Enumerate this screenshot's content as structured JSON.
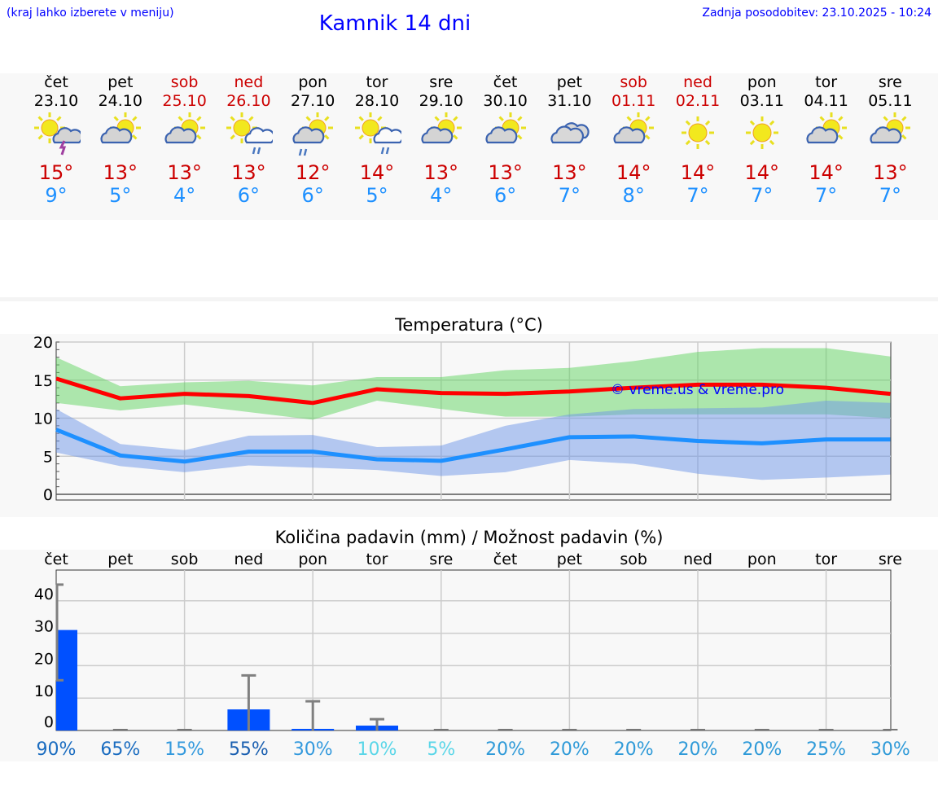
{
  "header": {
    "hint": "(kraj lahko izberete v meniju)",
    "title": "Kamnik 14 dni",
    "updated": "Zadnja posodobitev: 23.10.2025 - 10:24"
  },
  "days": [
    {
      "name": "čet",
      "date": "23.10",
      "weekend": false,
      "icon": "sun-cloud-thunder-icon",
      "max": "15°",
      "min": "9°"
    },
    {
      "name": "pet",
      "date": "24.10",
      "weekend": false,
      "icon": "partly-cloudy-icon",
      "max": "13°",
      "min": "5°"
    },
    {
      "name": "sob",
      "date": "25.10",
      "weekend": true,
      "icon": "partly-cloudy-icon",
      "max": "13°",
      "min": "4°"
    },
    {
      "name": "ned",
      "date": "26.10",
      "weekend": true,
      "icon": "sun-cloud-rain-icon",
      "max": "13°",
      "min": "6°"
    },
    {
      "name": "pon",
      "date": "27.10",
      "weekend": false,
      "icon": "partly-cloudy-rain-icon",
      "max": "12°",
      "min": "6°"
    },
    {
      "name": "tor",
      "date": "28.10",
      "weekend": false,
      "icon": "sun-cloud-rain-icon",
      "max": "14°",
      "min": "5°"
    },
    {
      "name": "sre",
      "date": "29.10",
      "weekend": false,
      "icon": "partly-cloudy-icon",
      "max": "13°",
      "min": "4°"
    },
    {
      "name": "čet",
      "date": "30.10",
      "weekend": false,
      "icon": "partly-cloudy-icon",
      "max": "13°",
      "min": "6°"
    },
    {
      "name": "pet",
      "date": "31.10",
      "weekend": false,
      "icon": "cloudy-icon",
      "max": "13°",
      "min": "7°"
    },
    {
      "name": "sob",
      "date": "01.11",
      "weekend": true,
      "icon": "partly-cloudy-icon",
      "max": "14°",
      "min": "8°"
    },
    {
      "name": "ned",
      "date": "02.11",
      "weekend": true,
      "icon": "sunny-icon",
      "max": "14°",
      "min": "7°"
    },
    {
      "name": "pon",
      "date": "03.11",
      "weekend": false,
      "icon": "sunny-icon",
      "max": "14°",
      "min": "7°"
    },
    {
      "name": "tor",
      "date": "04.11",
      "weekend": false,
      "icon": "partly-cloudy-icon",
      "max": "14°",
      "min": "7°"
    },
    {
      "name": "sre",
      "date": "05.11",
      "weekend": false,
      "icon": "partly-cloudy-icon",
      "max": "13°",
      "min": "7°"
    }
  ],
  "chart_data": [
    {
      "type": "line",
      "title": "Temperatura (°C)",
      "ylim": [
        0,
        20
      ],
      "yticks": [
        "0",
        "5",
        "10",
        "15",
        "20"
      ],
      "watermark": "© vreme.us & vreme.pro",
      "series": [
        {
          "name": "max",
          "color": "#ff0000",
          "values": [
            15.2,
            12.6,
            13.2,
            12.9,
            12.0,
            13.8,
            13.3,
            13.2,
            13.5,
            14.0,
            14.4,
            14.4,
            14.0,
            13.2
          ],
          "band_upper": [
            18,
            14.2,
            14.7,
            14.9,
            14.3,
            15.4,
            15.4,
            16.3,
            16.6,
            17.5,
            18.7,
            19.2,
            19.2,
            18.1
          ],
          "band_lower": [
            12,
            11,
            11.8,
            10.8,
            9.8,
            12.3,
            11.2,
            10.2,
            10.2,
            10.5,
            10.5,
            10.5,
            10.5,
            10.0
          ]
        },
        {
          "name": "min",
          "color": "#1e90ff",
          "values": [
            8.5,
            5.1,
            4.3,
            5.6,
            5.6,
            4.6,
            4.4,
            5.9,
            7.5,
            7.6,
            7.0,
            6.7,
            7.2,
            7.2
          ],
          "band_upper": [
            11.2,
            6.6,
            5.8,
            7.7,
            7.8,
            6.2,
            6.4,
            9.0,
            10.5,
            11.2,
            11.3,
            11.4,
            12.3,
            12.0
          ],
          "band_lower": [
            5.5,
            3.7,
            2.9,
            3.8,
            3.5,
            3.2,
            2.4,
            2.9,
            4.5,
            4.0,
            2.7,
            1.9,
            2.2,
            2.6
          ]
        }
      ]
    },
    {
      "type": "bar",
      "title": "Količina padavin (mm) / Možnost padavin (%)",
      "ylim": [
        0,
        48
      ],
      "yticks": [
        "0",
        "10",
        "20",
        "30",
        "40"
      ],
      "categories": [
        "čet",
        "pet",
        "sob",
        "ned",
        "pon",
        "tor",
        "sre",
        "čet",
        "pet",
        "sob",
        "ned",
        "pon",
        "tor",
        "sre"
      ],
      "values": [
        31,
        0,
        0,
        6.5,
        0.5,
        1.5,
        0,
        0,
        0,
        0,
        0,
        0,
        0,
        0
      ],
      "err_low": [
        15.5,
        0,
        0,
        0,
        0,
        0,
        0,
        0,
        0,
        0,
        0,
        0,
        0,
        0
      ],
      "err_high": [
        45,
        0,
        0,
        17,
        9,
        3.5,
        0,
        0,
        0,
        0,
        0,
        0,
        0,
        0
      ],
      "probability": [
        "90%",
        "65%",
        "15%",
        "55%",
        "30%",
        "10%",
        "5%",
        "20%",
        "20%",
        "20%",
        "20%",
        "20%",
        "25%",
        "30%"
      ],
      "prob_colors": [
        "#1a6cc0",
        "#1a6cc0",
        "#3399dd",
        "#1a5fb0",
        "#3399dd",
        "#5ad6e8",
        "#5ad6e8",
        "#2f9ad8",
        "#2f9ad8",
        "#2f9ad8",
        "#2f9ad8",
        "#2f9ad8",
        "#2f9ad8",
        "#2f9ad8"
      ]
    }
  ]
}
